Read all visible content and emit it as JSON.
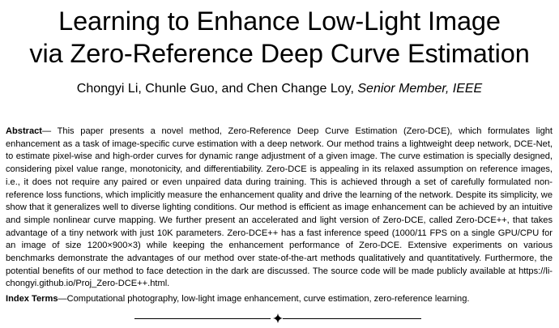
{
  "title": {
    "line1": "Learning to Enhance Low-Light Image",
    "line2": "via Zero-Reference Deep Curve Estimation"
  },
  "authors": {
    "names": "Chongyi Li, Chunle Guo, and Chen Change Loy,",
    "member": "Senior Member, IEEE"
  },
  "abstract": {
    "label": "Abstract",
    "text": "— This paper presents a novel method, Zero-Reference Deep Curve Estimation (Zero-DCE), which formulates light enhancement as a task of image-specific curve estimation with a deep network. Our method trains a lightweight deep network, DCE-Net, to estimate pixel-wise and high-order curves for dynamic range adjustment of a given image. The curve estimation is specially designed, considering pixel value range, monotonicity, and differentiability. Zero-DCE is appealing in its relaxed assumption on reference images, i.e., it does not require any paired or even unpaired data during training. This is achieved through a set of carefully formulated non-reference loss functions, which implicitly measure the enhancement quality and drive the learning of the network. Despite its simplicity, we show that it generalizes well to diverse lighting conditions. Our method is efficient as image enhancement can be achieved by an intuitive and simple nonlinear curve mapping. We further present an accelerated and light version of Zero-DCE, called Zero-DCE++, that takes advantage of a tiny network with just 10K parameters. Zero-DCE++ has a fast inference speed (1000/11 FPS on a single GPU/CPU for an image of size 1200×900×3) while keeping the enhancement performance of Zero-DCE. Extensive experiments on various benchmarks demonstrate the advantages of our method over state-of-the-art methods qualitatively and quantitatively. Furthermore, the potential benefits of our method to face detection in the dark are discussed. The source code will be made publicly available at https://li-chongyi.github.io/Proj_Zero-DCE++.html."
  },
  "index_terms": {
    "label": "Index Terms",
    "text": "—Computational photography, low-light image enhancement, curve estimation, zero-reference learning."
  }
}
